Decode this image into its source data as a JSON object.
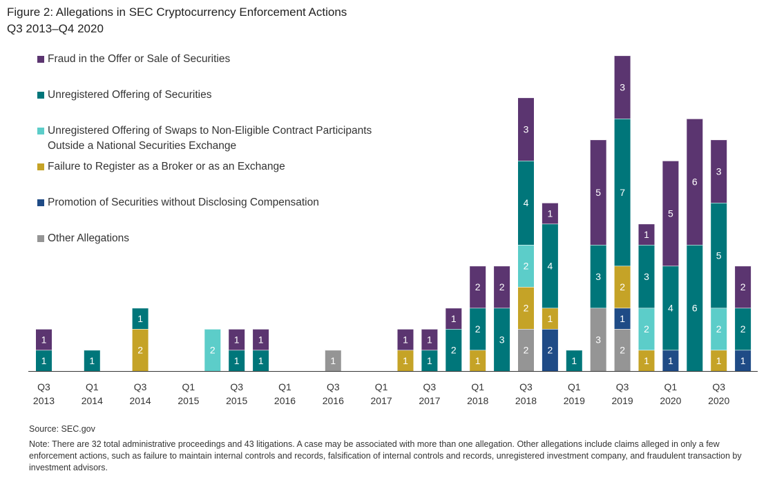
{
  "title": {
    "line1": "Figure 2: Allegations in SEC Cryptocurrency Enforcement Actions",
    "line2": "Q3 2013–Q4 2020"
  },
  "chart_data": {
    "type": "bar",
    "stacked": true,
    "categories": [
      "Q3 2013",
      "Q4 2013",
      "Q1 2014",
      "Q2 2014",
      "Q3 2014",
      "Q4 2014",
      "Q1 2015",
      "Q2 2015",
      "Q3 2015",
      "Q4 2015",
      "Q1 2016",
      "Q2 2016",
      "Q3 2016",
      "Q4 2016",
      "Q1 2017",
      "Q2 2017",
      "Q3 2017",
      "Q4 2017",
      "Q1 2018",
      "Q2 2018",
      "Q3 2018",
      "Q4 2018",
      "Q1 2019",
      "Q2 2019",
      "Q3 2019",
      "Q4 2019",
      "Q1 2020",
      "Q2 2020",
      "Q3 2020",
      "Q4 2020"
    ],
    "tick_labels": [
      {
        "index": 0,
        "top": "Q3",
        "bottom": "2013"
      },
      {
        "index": 2,
        "top": "Q1",
        "bottom": "2014"
      },
      {
        "index": 4,
        "top": "Q3",
        "bottom": "2014"
      },
      {
        "index": 6,
        "top": "Q1",
        "bottom": "2015"
      },
      {
        "index": 8,
        "top": "Q3",
        "bottom": "2015"
      },
      {
        "index": 10,
        "top": "Q1",
        "bottom": "2016"
      },
      {
        "index": 12,
        "top": "Q3",
        "bottom": "2016"
      },
      {
        "index": 14,
        "top": "Q1",
        "bottom": "2017"
      },
      {
        "index": 16,
        "top": "Q3",
        "bottom": "2017"
      },
      {
        "index": 18,
        "top": "Q1",
        "bottom": "2018"
      },
      {
        "index": 20,
        "top": "Q3",
        "bottom": "2018"
      },
      {
        "index": 22,
        "top": "Q1",
        "bottom": "2019"
      },
      {
        "index": 24,
        "top": "Q3",
        "bottom": "2019"
      },
      {
        "index": 26,
        "top": "Q1",
        "bottom": "2020"
      },
      {
        "index": 28,
        "top": "Q3",
        "bottom": "2020"
      }
    ],
    "stack_order_bottom_to_top": [
      "Other Allegations",
      "Promotion of Securities without Disclosing Compensation",
      "Failure to Register as a Broker or as an Exchange",
      "Unregistered Offering of Swaps to Non-Eligible Contract Participants Outside a National Securities Exchange",
      "Unregistered Offering of Securities",
      "Fraud in the Offer or Sale of Securities"
    ],
    "series": [
      {
        "name": "Fraud in the Offer or Sale of Securities",
        "color": "#5b3570",
        "values": [
          1,
          0,
          0,
          0,
          0,
          0,
          0,
          0,
          1,
          1,
          0,
          0,
          0,
          0,
          0,
          1,
          1,
          1,
          2,
          2,
          3,
          1,
          0,
          5,
          3,
          1,
          5,
          6,
          3,
          2
        ]
      },
      {
        "name": "Unregistered Offering of Securities",
        "color": "#00767a",
        "values": [
          1,
          0,
          1,
          0,
          1,
          0,
          0,
          0,
          1,
          1,
          0,
          0,
          0,
          0,
          0,
          0,
          1,
          2,
          2,
          3,
          4,
          4,
          1,
          3,
          7,
          3,
          4,
          6,
          5,
          2
        ]
      },
      {
        "name": "Unregistered Offering of Swaps to Non-Eligible Contract Participants\nOutside a National Securities Exchange",
        "color": "#5ccdc9",
        "values": [
          0,
          0,
          0,
          0,
          0,
          0,
          0,
          2,
          0,
          0,
          0,
          0,
          0,
          0,
          0,
          0,
          0,
          0,
          0,
          0,
          2,
          0,
          0,
          0,
          0,
          2,
          0,
          0,
          2,
          0
        ]
      },
      {
        "name": "Failure to Register as a Broker or as an Exchange",
        "color": "#c5a327",
        "values": [
          0,
          0,
          0,
          0,
          2,
          0,
          0,
          0,
          0,
          0,
          0,
          0,
          0,
          0,
          0,
          1,
          0,
          0,
          1,
          0,
          2,
          1,
          0,
          0,
          2,
          1,
          0,
          0,
          1,
          0
        ]
      },
      {
        "name": "Promotion of Securities without Disclosing Compensation",
        "color": "#1f4b86",
        "values": [
          0,
          0,
          0,
          0,
          0,
          0,
          0,
          0,
          0,
          0,
          0,
          0,
          0,
          0,
          0,
          0,
          0,
          0,
          0,
          0,
          0,
          2,
          0,
          0,
          1,
          0,
          1,
          0,
          0,
          1
        ]
      },
      {
        "name": "Other Allegations",
        "color": "#959595",
        "values": [
          0,
          0,
          0,
          0,
          0,
          0,
          0,
          0,
          0,
          0,
          0,
          0,
          1,
          0,
          0,
          0,
          0,
          0,
          0,
          0,
          2,
          0,
          0,
          3,
          2,
          0,
          0,
          0,
          0,
          0
        ]
      }
    ],
    "xlabel": "",
    "ylabel": "",
    "ylim": [
      0,
      15
    ],
    "grid": false,
    "legend_position": "top-left"
  },
  "footer": {
    "source": "Source: SEC.gov",
    "note": "Note: There are 32 total administrative proceedings and 43 litigations. A case may be associated with more than one allegation. Other allegations include claims alleged in only a few enforcement actions, such as failure to maintain internal controls and records, falsification of internal controls and records, unregistered investment company, and fraudulent transaction by investment advisors."
  }
}
